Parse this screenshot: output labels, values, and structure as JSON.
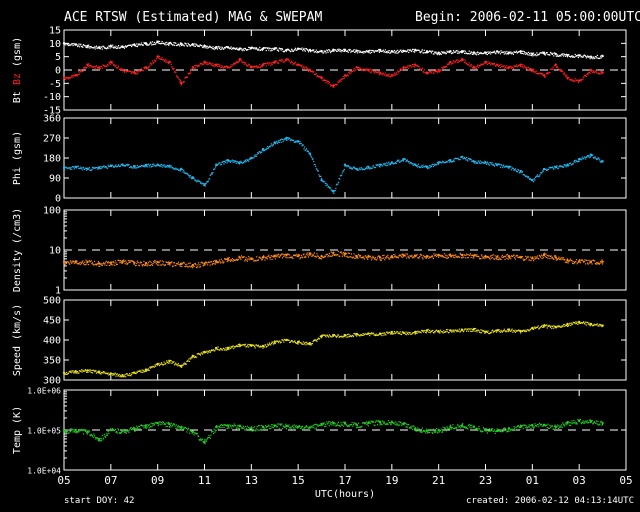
{
  "header": {
    "title": "ACE RTSW (Estimated) MAG & SWEPAM",
    "begin_label": "Begin:",
    "begin_value": "2006-02-11 05:00:00UTC"
  },
  "footer": {
    "start_doy_label": "start DOY:",
    "start_doy_value": "42",
    "created_label": "created:",
    "created_value": "2006-02-12 04:13:14UTC"
  },
  "colors": {
    "background": "#000000",
    "axes": "#ffffff",
    "bt": "#ffffff",
    "bz": "#ff2020",
    "phi": "#20b8f0",
    "density": "#ff8c1a",
    "speed": "#e8e020",
    "temp": "#20d020"
  },
  "chart_data": [
    {
      "type": "scatter",
      "panel": "mag",
      "ylabel_parts": [
        "Bt",
        "Bz",
        "(gsm)"
      ],
      "ylim": [
        -15,
        15
      ],
      "yticks": [
        "15",
        "10",
        "5",
        "0",
        "-5",
        "-10",
        "-15"
      ],
      "ytick_values": [
        15,
        10,
        5,
        0,
        -5,
        -10,
        -15
      ],
      "dashed_ref": [
        0
      ],
      "series": [
        {
          "name": "Bt",
          "color_key": "bt",
          "x": [
            0,
            0.5,
            1,
            1.5,
            2,
            2.5,
            3,
            3.5,
            4,
            4.5,
            5,
            5.5,
            6,
            6.5,
            7,
            7.5,
            8,
            8.5,
            9,
            9.5,
            10,
            10.5,
            11,
            11.5,
            12,
            12.5,
            13,
            13.5,
            14,
            14.5,
            15,
            15.5,
            16,
            16.5,
            17,
            17.5,
            18,
            18.5,
            19,
            19.5,
            20,
            20.5,
            21,
            21.5,
            22,
            22.5,
            23
          ],
          "values": [
            10,
            9.5,
            9,
            8.5,
            9,
            8.8,
            9.5,
            10,
            10.5,
            10,
            9.8,
            9.5,
            9,
            8.5,
            8.5,
            8,
            8.2,
            8,
            8,
            7.5,
            8,
            7.5,
            7,
            7.5,
            7.5,
            7.2,
            7,
            7.5,
            7,
            7.2,
            7.5,
            7,
            6.5,
            7,
            7,
            6.5,
            6.5,
            7,
            6.5,
            7,
            6,
            6.5,
            6,
            5.5,
            5.5,
            5,
            5.2
          ]
        },
        {
          "name": "Bz",
          "color_key": "bz",
          "x": [
            0,
            0.5,
            1,
            1.5,
            2,
            2.5,
            3,
            3.5,
            4,
            4.5,
            5,
            5.5,
            6,
            6.5,
            7,
            7.5,
            8,
            8.5,
            9,
            9.5,
            10,
            10.5,
            11,
            11.5,
            12,
            12.5,
            13,
            13.5,
            14,
            14.5,
            15,
            15.5,
            16,
            16.5,
            17,
            17.5,
            18,
            18.5,
            19,
            19.5,
            20,
            20.5,
            21,
            21.5,
            22,
            22.5,
            23
          ],
          "values": [
            -3,
            -2,
            2,
            1,
            3,
            0,
            -1,
            1,
            5,
            3,
            -5,
            1,
            3,
            2,
            1,
            4,
            1,
            2,
            3,
            4,
            2,
            0,
            -3,
            -6,
            -2,
            1,
            0,
            -1,
            -2,
            1,
            2,
            -1,
            0,
            3,
            4,
            1,
            3,
            2,
            1,
            2,
            0,
            -2,
            2,
            -3,
            -4,
            0,
            -1
          ]
        }
      ]
    },
    {
      "type": "scatter",
      "panel": "phi",
      "ylabel": "Phi (gsm)",
      "ylim": [
        0,
        360
      ],
      "yticks": [
        "360",
        "270",
        "180",
        "90",
        "0"
      ],
      "ytick_values": [
        360,
        270,
        180,
        90,
        0
      ],
      "series": [
        {
          "name": "Phi",
          "color_key": "phi",
          "x": [
            0,
            0.5,
            1,
            1.5,
            2,
            2.5,
            3,
            3.5,
            4,
            4.5,
            5,
            5.5,
            6,
            6.5,
            7,
            7.5,
            8,
            8.5,
            9,
            9.5,
            10,
            10.5,
            11,
            11.5,
            12,
            12.5,
            13,
            13.5,
            14,
            14.5,
            15,
            15.5,
            16,
            16.5,
            17,
            17.5,
            18,
            18.5,
            19,
            19.5,
            20,
            20.5,
            21,
            21.5,
            22,
            22.5,
            23
          ],
          "values": [
            135,
            140,
            132,
            138,
            145,
            150,
            142,
            148,
            150,
            145,
            130,
            90,
            60,
            150,
            170,
            160,
            180,
            220,
            250,
            270,
            255,
            200,
            80,
            30,
            150,
            130,
            140,
            150,
            160,
            175,
            150,
            140,
            160,
            170,
            185,
            165,
            160,
            150,
            140,
            120,
            80,
            130,
            140,
            150,
            175,
            195,
            165
          ]
        }
      ]
    },
    {
      "type": "scatter",
      "panel": "density",
      "ylabel": "Density (/cm3)",
      "yscale": "log",
      "ylim": [
        1,
        100
      ],
      "yticks": [
        "100",
        "10",
        "1"
      ],
      "ytick_values": [
        100,
        10,
        1
      ],
      "dashed_ref": [
        10
      ],
      "series": [
        {
          "name": "Density",
          "color_key": "density",
          "x": [
            0,
            0.5,
            1,
            1.5,
            2,
            2.5,
            3,
            3.5,
            4,
            4.5,
            5,
            5.5,
            6,
            6.5,
            7,
            7.5,
            8,
            8.5,
            9,
            9.5,
            10,
            10.5,
            11,
            11.5,
            12,
            12.5,
            13,
            13.5,
            14,
            14.5,
            15,
            15.5,
            16,
            16.5,
            17,
            17.5,
            18,
            18.5,
            19,
            19.5,
            20,
            20.5,
            21,
            21.5,
            22,
            22.5,
            23
          ],
          "values": [
            5,
            5.2,
            5,
            4.6,
            4.8,
            5.2,
            4.8,
            4.7,
            5,
            4.6,
            4.5,
            4.2,
            4.6,
            5,
            6,
            6.5,
            6,
            6.5,
            7,
            7.5,
            7,
            8,
            7,
            8.5,
            8,
            7,
            6.8,
            6.5,
            7,
            7.5,
            7.2,
            7,
            7.5,
            7.3,
            7.5,
            7.2,
            7,
            6.8,
            7,
            6.5,
            6.2,
            7.5,
            6.5,
            5.5,
            5.2,
            5,
            5.1
          ]
        }
      ]
    },
    {
      "type": "scatter",
      "panel": "speed",
      "ylabel": "Speed (km/s)",
      "ylim": [
        300,
        500
      ],
      "yticks": [
        "500",
        "450",
        "400",
        "350",
        "300"
      ],
      "ytick_values": [
        500,
        450,
        400,
        350,
        300
      ],
      "series": [
        {
          "name": "Speed",
          "color_key": "speed",
          "x": [
            0,
            0.5,
            1,
            1.5,
            2,
            2.5,
            3,
            3.5,
            4,
            4.5,
            5,
            5.5,
            6,
            6.5,
            7,
            7.5,
            8,
            8.5,
            9,
            9.5,
            10,
            10.5,
            11,
            11.5,
            12,
            12.5,
            13,
            13.5,
            14,
            14.5,
            15,
            15.5,
            16,
            16.5,
            17,
            17.5,
            18,
            18.5,
            19,
            19.5,
            20,
            20.5,
            21,
            21.5,
            22,
            22.5,
            23
          ],
          "values": [
            318,
            322,
            324,
            320,
            316,
            312,
            318,
            326,
            340,
            348,
            335,
            360,
            370,
            380,
            380,
            388,
            386,
            385,
            396,
            400,
            395,
            392,
            410,
            412,
            412,
            415,
            416,
            416,
            420,
            418,
            420,
            424,
            422,
            424,
            425,
            427,
            420,
            424,
            426,
            422,
            430,
            436,
            432,
            440,
            445,
            440,
            436
          ]
        }
      ]
    },
    {
      "type": "scatter",
      "panel": "temp",
      "ylabel": "Temp (K)",
      "yscale": "log",
      "ylim": [
        10000,
        1000000
      ],
      "yticks": [
        "1.0E+06",
        "1.0E+05",
        "1.0E+04"
      ],
      "ytick_values": [
        1000000,
        100000,
        10000
      ],
      "dashed_ref": [
        100000
      ],
      "series": [
        {
          "name": "Temp",
          "color_key": "temp",
          "x": [
            0,
            0.5,
            1,
            1.5,
            2,
            2.5,
            3,
            3.5,
            4,
            4.5,
            5,
            5.5,
            6,
            6.5,
            7,
            7.5,
            8,
            8.5,
            9,
            9.5,
            10,
            10.5,
            11,
            11.5,
            12,
            12.5,
            13,
            13.5,
            14,
            14.5,
            15,
            15.5,
            16,
            16.5,
            17,
            17.5,
            18,
            18.5,
            19,
            19.5,
            20,
            20.5,
            21,
            21.5,
            22,
            22.5,
            23
          ],
          "values": [
            95000,
            100000,
            90000,
            60000,
            100000,
            95000,
            110000,
            130000,
            150000,
            140000,
            115000,
            90000,
            50000,
            120000,
            130000,
            125000,
            110000,
            120000,
            130000,
            125000,
            120000,
            115000,
            140000,
            150000,
            145000,
            135000,
            150000,
            160000,
            155000,
            140000,
            110000,
            95000,
            100000,
            120000,
            130000,
            120000,
            100000,
            95000,
            110000,
            120000,
            130000,
            135000,
            120000,
            150000,
            170000,
            160000,
            150000
          ]
        }
      ]
    }
  ],
  "xaxis": {
    "label": "UTC(hours)",
    "range_hours": [
      0,
      24
    ],
    "tick_labels": [
      "05",
      "07",
      "09",
      "11",
      "13",
      "15",
      "17",
      "19",
      "21",
      "23",
      "01",
      "03",
      "05"
    ]
  }
}
